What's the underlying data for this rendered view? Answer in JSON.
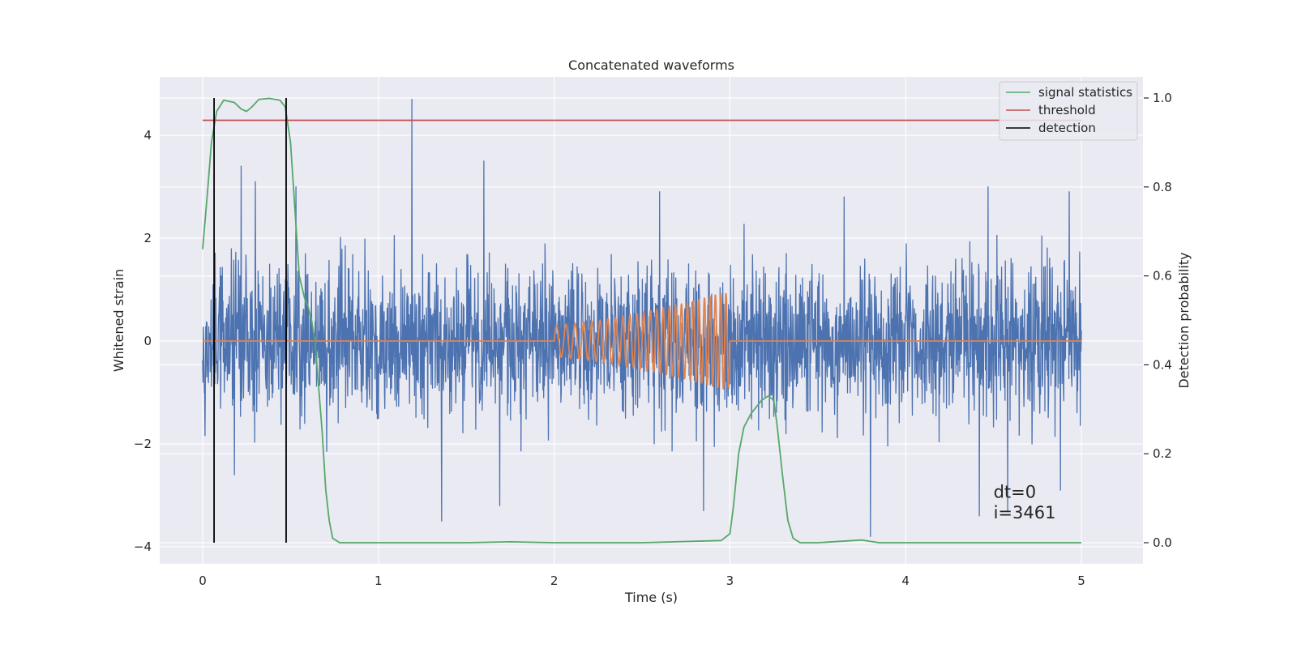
{
  "chart_data": {
    "type": "line",
    "title": "Concatenated waveforms",
    "xlabel": "Time (s)",
    "ylabel": "Whitened strain",
    "y2label": "Detection probability",
    "xlim": [
      -0.25,
      5.35
    ],
    "ylim": [
      -4.2,
      5.1
    ],
    "y2lim": [
      -0.05,
      1.05
    ],
    "x_ticks": [
      0,
      1,
      2,
      3,
      4,
      5
    ],
    "y_ticks": [
      -4,
      -2,
      0,
      2,
      4
    ],
    "y2_ticks": [
      0.0,
      0.2,
      0.4,
      0.6,
      0.8,
      1.0
    ],
    "x_tick_labels": [
      "0",
      "1",
      "2",
      "3",
      "4",
      "5"
    ],
    "y_tick_labels": [
      "−4",
      "−2",
      "0",
      "2",
      "4"
    ],
    "y2_tick_labels": [
      "0.0",
      "0.2",
      "0.4",
      "0.6",
      "0.8",
      "1.0"
    ],
    "grid": true,
    "legend": {
      "placement": "top-right",
      "entries": [
        {
          "label": "signal statistics",
          "color": "#55a868"
        },
        {
          "label": "threshold",
          "color": "#c44e52"
        },
        {
          "label": "detection",
          "color": "#000000"
        }
      ]
    },
    "noise": {
      "x_range": [
        0,
        5
      ],
      "typical_amplitude": 1.3,
      "spikes": [
        {
          "x": 0.22,
          "y": 3.4
        },
        {
          "x": 0.3,
          "y": 3.1
        },
        {
          "x": 0.53,
          "y": 3.0
        },
        {
          "x": 1.19,
          "y": 4.7
        },
        {
          "x": 1.6,
          "y": 3.5
        },
        {
          "x": 2.6,
          "y": 2.9
        },
        {
          "x": 3.65,
          "y": 2.8
        },
        {
          "x": 4.47,
          "y": 3.0
        },
        {
          "x": 4.93,
          "y": 2.9
        },
        {
          "x": 1.36,
          "y": -3.5
        },
        {
          "x": 1.69,
          "y": -3.2
        },
        {
          "x": 2.85,
          "y": -3.3
        },
        {
          "x": 3.8,
          "y": -3.8
        },
        {
          "x": 4.42,
          "y": -3.4
        },
        {
          "x": 4.58,
          "y": -3.3
        },
        {
          "x": 0.18,
          "y": -2.6
        },
        {
          "x": 4.88,
          "y": -2.9
        }
      ]
    },
    "waveform": {
      "x": [
        0,
        2.0,
        2.25,
        2.5,
        2.75,
        2.97,
        3.0,
        3.02,
        5
      ],
      "envelope": [
        0,
        0.3,
        0.4,
        0.55,
        0.75,
        0.95,
        0.9,
        0,
        0
      ]
    },
    "series": [
      {
        "name": "signal statistics",
        "axis": "y2",
        "x": [
          0,
          0.03,
          0.05,
          0.08,
          0.12,
          0.18,
          0.22,
          0.25,
          0.28,
          0.32,
          0.38,
          0.44,
          0.47,
          0.5,
          0.53,
          0.55,
          0.58,
          0.6,
          0.62,
          0.64,
          0.66,
          0.68,
          0.7,
          0.72,
          0.74,
          0.78,
          1.0,
          1.5,
          1.75,
          2.0,
          2.5,
          2.95,
          3.0,
          3.02,
          3.05,
          3.08,
          3.12,
          3.18,
          3.22,
          3.25,
          3.27,
          3.3,
          3.33,
          3.36,
          3.4,
          3.5,
          3.75,
          3.8,
          3.85,
          4.0,
          4.5,
          5.0
        ],
        "y": [
          0.66,
          0.8,
          0.9,
          0.97,
          0.995,
          0.99,
          0.975,
          0.97,
          0.98,
          0.997,
          0.999,
          0.995,
          0.98,
          0.9,
          0.72,
          0.6,
          0.55,
          0.53,
          0.5,
          0.45,
          0.35,
          0.25,
          0.12,
          0.05,
          0.01,
          0.0,
          0.0,
          0.0,
          0.002,
          0.0,
          0.0,
          0.005,
          0.02,
          0.08,
          0.2,
          0.26,
          0.29,
          0.32,
          0.33,
          0.32,
          0.26,
          0.15,
          0.05,
          0.01,
          0.0,
          0.0,
          0.006,
          0.003,
          0.0,
          0.0,
          0.0,
          0.0
        ]
      },
      {
        "name": "threshold",
        "axis": "y2",
        "x": [
          0,
          5
        ],
        "y": [
          0.95,
          0.95
        ]
      },
      {
        "name": "detection",
        "axis": "y2",
        "type": "vlines",
        "x": [
          0.065,
          0.475
        ],
        "y": [
          0,
          1
        ]
      }
    ],
    "annotations": [
      {
        "text": "dt=0",
        "x": 4.5,
        "y": -3.05
      },
      {
        "text": "i=3461",
        "x": 4.5,
        "y": -3.45
      }
    ]
  }
}
